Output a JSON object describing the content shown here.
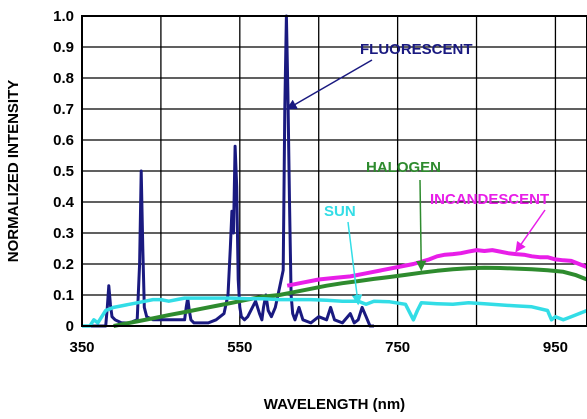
{
  "chart_data": {
    "type": "line",
    "xlabel": "WAVELENGTH (nm)",
    "ylabel": "NORMALIZED INTENSITY",
    "xlim": [
      350,
      990
    ],
    "ylim": [
      0,
      1.0
    ],
    "x_ticks": [
      350,
      550,
      750,
      950
    ],
    "x_tick_labels": [
      "350",
      "550",
      "750",
      "950"
    ],
    "y_ticks": [
      0,
      0.1,
      0.2,
      0.3,
      0.4,
      0.5,
      0.6,
      0.7,
      0.8,
      0.9,
      1.0
    ],
    "y_tick_labels": [
      "0",
      "0.1",
      "0.2",
      "0.3",
      "0.4",
      "0.5",
      "0.6",
      "0.7",
      "0.8",
      "0.9",
      "1.0"
    ],
    "grid": true,
    "series": [
      {
        "name": "FLUORESCENT",
        "color": "#1a1a80",
        "x": [
          350,
          370,
          380,
          382,
          384,
          386,
          388,
          392,
          400,
          410,
          420,
          423,
          425,
          427,
          429,
          432,
          440,
          460,
          480,
          482,
          484,
          486,
          488,
          492,
          500,
          510,
          520,
          530,
          535,
          538,
          540,
          542,
          544,
          546,
          548,
          550,
          552,
          556,
          560,
          570,
          575,
          578,
          580,
          583,
          586,
          590,
          595,
          600,
          605,
          607,
          609,
          611,
          613,
          615,
          617,
          620,
          625,
          630,
          640,
          650,
          660,
          665,
          670,
          680,
          690,
          695,
          700,
          705,
          710,
          715,
          720
        ],
        "y": [
          0.0,
          0.0,
          0.0,
          0.06,
          0.13,
          0.07,
          0.03,
          0.02,
          0.01,
          0.01,
          0.02,
          0.2,
          0.5,
          0.25,
          0.06,
          0.03,
          0.02,
          0.02,
          0.02,
          0.06,
          0.09,
          0.05,
          0.02,
          0.01,
          0.01,
          0.01,
          0.02,
          0.04,
          0.1,
          0.25,
          0.37,
          0.3,
          0.58,
          0.45,
          0.15,
          0.06,
          0.03,
          0.02,
          0.03,
          0.08,
          0.04,
          0.02,
          0.06,
          0.1,
          0.05,
          0.03,
          0.06,
          0.12,
          0.18,
          0.7,
          1.0,
          0.75,
          0.4,
          0.1,
          0.04,
          0.02,
          0.06,
          0.02,
          0.01,
          0.03,
          0.02,
          0.06,
          0.02,
          0.01,
          0.04,
          0.01,
          0.02,
          0.06,
          0.03,
          0.0,
          0.0
        ]
      },
      {
        "name": "HALOGEN",
        "color": "#2e8b2e",
        "x": [
          390,
          400,
          420,
          440,
          460,
          480,
          500,
          520,
          540,
          560,
          580,
          600,
          620,
          640,
          660,
          680,
          700,
          720,
          740,
          760,
          780,
          800,
          820,
          840,
          860,
          880,
          900,
          920,
          940,
          960,
          975,
          990
        ],
        "y": [
          0.0,
          0.005,
          0.015,
          0.025,
          0.035,
          0.045,
          0.055,
          0.065,
          0.075,
          0.085,
          0.095,
          0.1,
          0.11,
          0.12,
          0.13,
          0.138,
          0.145,
          0.152,
          0.158,
          0.165,
          0.172,
          0.178,
          0.183,
          0.186,
          0.188,
          0.187,
          0.185,
          0.183,
          0.18,
          0.175,
          0.165,
          0.15
        ]
      },
      {
        "name": "INCANDESCENT",
        "color": "#e81ee8",
        "x": [
          610,
          630,
          650,
          670,
          690,
          710,
          730,
          750,
          770,
          790,
          800,
          810,
          820,
          830,
          840,
          850,
          860,
          870,
          880,
          890,
          900,
          910,
          920,
          930,
          940,
          950,
          960,
          970,
          980,
          990
        ],
        "y": [
          0.13,
          0.14,
          0.15,
          0.155,
          0.16,
          0.17,
          0.18,
          0.19,
          0.2,
          0.215,
          0.225,
          0.23,
          0.232,
          0.235,
          0.24,
          0.245,
          0.242,
          0.245,
          0.24,
          0.235,
          0.232,
          0.23,
          0.225,
          0.222,
          0.222,
          0.215,
          0.212,
          0.21,
          0.2,
          0.19
        ]
      },
      {
        "name": "SUN",
        "color": "#33dde6",
        "x": [
          350,
          360,
          365,
          370,
          380,
          390,
          400,
          410,
          420,
          430,
          440,
          450,
          460,
          470,
          480,
          490,
          500,
          520,
          540,
          560,
          580,
          600,
          620,
          640,
          660,
          680,
          700,
          710,
          720,
          740,
          760,
          770,
          775,
          780,
          800,
          820,
          840,
          860,
          880,
          900,
          920,
          940,
          945,
          950,
          960,
          970,
          980,
          990
        ],
        "y": [
          0.0,
          0.0,
          0.02,
          0.01,
          0.05,
          0.06,
          0.065,
          0.07,
          0.075,
          0.08,
          0.085,
          0.085,
          0.08,
          0.085,
          0.09,
          0.09,
          0.09,
          0.09,
          0.09,
          0.088,
          0.088,
          0.085,
          0.085,
          0.085,
          0.083,
          0.08,
          0.08,
          0.07,
          0.08,
          0.078,
          0.07,
          0.02,
          0.05,
          0.075,
          0.072,
          0.07,
          0.075,
          0.072,
          0.068,
          0.065,
          0.062,
          0.05,
          0.02,
          0.03,
          0.02,
          0.03,
          0.04,
          0.05
        ]
      }
    ],
    "annotations": [
      {
        "text": "FLUORESCENT",
        "color": "#1a1a80",
        "arrow_to": [
          610,
          0.7
        ]
      },
      {
        "text": "HALOGEN",
        "color": "#2e8b2e",
        "arrow_to": [
          780,
          0.18
        ]
      },
      {
        "text": "INCANDESCENT",
        "color": "#e81ee8",
        "arrow_to": [
          900,
          0.24
        ]
      },
      {
        "text": "SUN",
        "color": "#33dde6",
        "arrow_to": [
          700,
          0.07
        ]
      }
    ]
  }
}
